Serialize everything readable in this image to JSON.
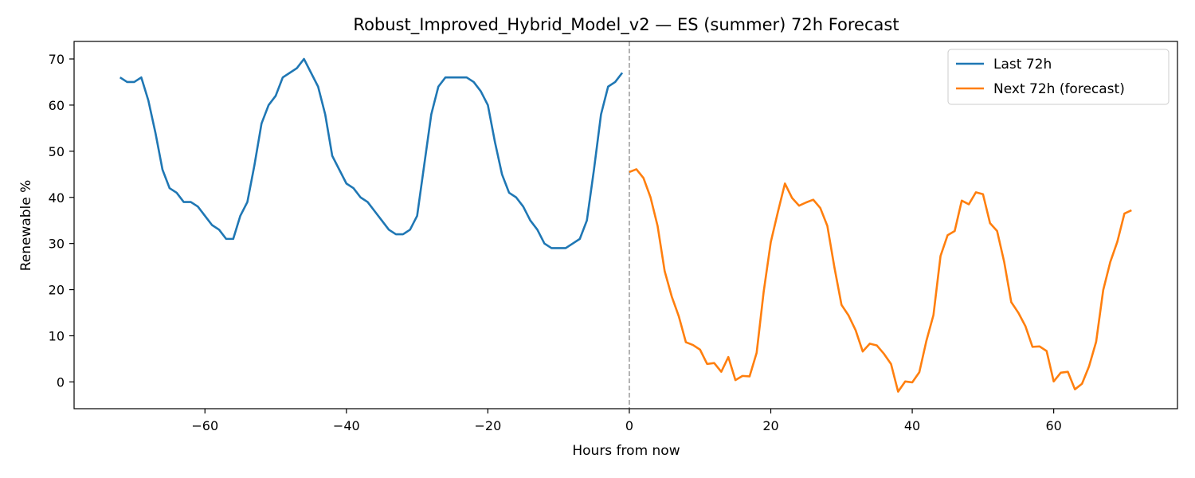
{
  "chart_data": {
    "type": "line",
    "title": "Robust_Improved_Hybrid_Model_v2 — ES (summer) 72h Forecast",
    "xlabel": "Hours from now",
    "ylabel": "Renewable %",
    "xlim": [
      -78.5,
      77.5
    ],
    "ylim": [
      -5.8,
      73.8
    ],
    "xticks": [
      -60,
      -40,
      -20,
      0,
      20,
      40,
      60
    ],
    "xtick_labels": [
      "−60",
      "−40",
      "−20",
      "0",
      "20",
      "40",
      "60"
    ],
    "yticks": [
      0,
      10,
      20,
      30,
      40,
      50,
      60,
      70
    ],
    "ytick_labels": [
      "0",
      "10",
      "20",
      "30",
      "40",
      "50",
      "60",
      "70"
    ],
    "grid": false,
    "legend_position": "top-right",
    "vline": {
      "x": 0,
      "style": "dashed",
      "color": "#999999"
    },
    "series": [
      {
        "name": "Last 72h",
        "color": "#1f77b4",
        "x": [
          -72,
          -71,
          -70,
          -69,
          -68,
          -67,
          -66,
          -65,
          -64,
          -63,
          -62,
          -61,
          -60,
          -59,
          -58,
          -57,
          -56,
          -55,
          -54,
          -53,
          -52,
          -51,
          -50,
          -49,
          -48,
          -47,
          -46,
          -45,
          -44,
          -43,
          -42,
          -41,
          -40,
          -39,
          -38,
          -37,
          -36,
          -35,
          -34,
          -33,
          -32,
          -31,
          -30,
          -29,
          -28,
          -27,
          -26,
          -25,
          -24,
          -23,
          -22,
          -21,
          -20,
          -19,
          -18,
          -17,
          -16,
          -15,
          -14,
          -13,
          -12,
          -11,
          -10,
          -9,
          -8,
          -7,
          -6,
          -5,
          -4,
          -3,
          -2,
          -1
        ],
        "values": [
          66,
          65,
          65,
          66,
          61,
          54,
          46,
          42,
          41,
          39,
          39,
          38,
          36,
          34,
          33,
          31,
          31,
          36,
          39,
          47,
          56,
          60,
          62,
          66,
          67,
          68,
          70,
          67,
          64,
          58,
          49,
          46,
          43,
          42,
          40,
          39,
          37,
          35,
          33,
          32,
          32,
          33,
          36,
          47,
          58,
          64,
          66,
          66,
          66,
          66,
          65,
          63,
          60,
          52,
          45,
          41,
          40,
          38,
          35,
          33,
          30,
          29,
          29,
          29,
          30,
          31,
          35,
          46,
          58,
          64,
          65,
          67
        ]
      },
      {
        "name": "Next 72h (forecast)",
        "color": "#ff7f0e",
        "x": [
          0,
          1,
          2,
          3,
          4,
          5,
          6,
          7,
          8,
          9,
          10,
          11,
          12,
          13,
          14,
          15,
          16,
          17,
          18,
          19,
          20,
          21,
          22,
          23,
          24,
          25,
          26,
          27,
          28,
          29,
          30,
          31,
          32,
          33,
          34,
          35,
          36,
          37,
          38,
          39,
          40,
          41,
          42,
          43,
          44,
          45,
          46,
          47,
          48,
          49,
          50,
          51,
          52,
          53,
          54,
          55,
          56,
          57,
          58,
          59,
          60,
          61,
          62,
          63,
          64,
          65,
          66,
          67,
          68,
          69,
          70,
          71
        ],
        "values": [
          45.5,
          46.1,
          44.2,
          40,
          33.8,
          24,
          18.5,
          14.2,
          8.6,
          8,
          7,
          3.9,
          4.1,
          2.2,
          5.4,
          0.4,
          1.3,
          1.2,
          6.3,
          19.6,
          30.3,
          36.8,
          43,
          39.9,
          38.2,
          38.9,
          39.5,
          37.7,
          33.8,
          24.8,
          16.7,
          14.4,
          11.2,
          6.6,
          8.3,
          7.9,
          6.1,
          3.9,
          -2.1,
          0.1,
          -0.1,
          2.1,
          8.9,
          14.5,
          27.3,
          31.8,
          32.7,
          39.3,
          38.5,
          41.1,
          40.7,
          34.4,
          32.7,
          26,
          17.3,
          15,
          12.1,
          7.6,
          7.7,
          6.7,
          0.1,
          2,
          2.2,
          -1.6,
          -0.4,
          3.4,
          8.7,
          19.9,
          26,
          30.4,
          36.5,
          37.2
        ]
      }
    ]
  }
}
